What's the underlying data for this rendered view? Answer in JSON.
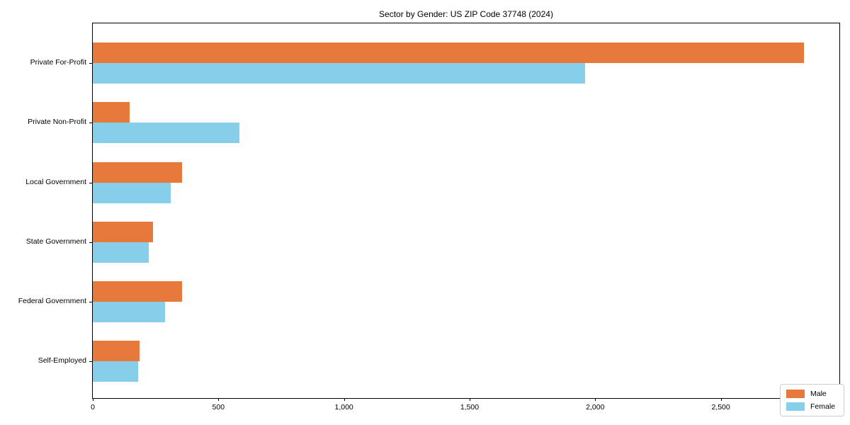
{
  "chart_data": {
    "type": "bar",
    "orientation": "horizontal",
    "title": "Sector by Gender: US ZIP Code 37748 (2024)",
    "categories": [
      "Private For-Profit",
      "Private Non-Profit",
      "Local Government",
      "State Government",
      "Federal Government",
      "Self-Employed"
    ],
    "series": [
      {
        "name": "Male",
        "color": "#e8793d",
        "values": [
          2830,
          147,
          355,
          241,
          355,
          185
        ]
      },
      {
        "name": "Female",
        "color": "#87ceeb",
        "values": [
          1960,
          583,
          311,
          222,
          288,
          181
        ]
      }
    ],
    "xlabel": "",
    "ylabel": "",
    "xlim": [
      0,
      2972
    ],
    "xticks": [
      0,
      500,
      1000,
      1500,
      2000,
      2500
    ],
    "xtick_labels": [
      "0",
      "500",
      "1,000",
      "1,500",
      "2,000",
      "2,500"
    ],
    "legend_position": "lower right",
    "grid": false,
    "background_color": "#ffffff",
    "spine_color": "#000000"
  }
}
